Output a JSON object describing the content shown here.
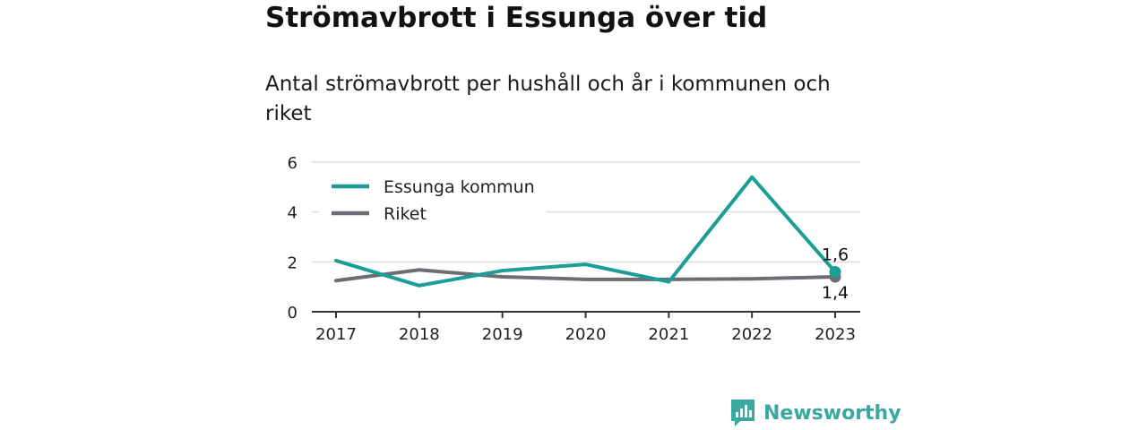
{
  "title": "Strömavbrott i Essunga över tid",
  "subtitle": "Antal strömavbrott per hushåll och år i kommunen och riket",
  "brand": {
    "name": "Newsworthy",
    "logo_icon": "bar-chart-speech-bubble-icon",
    "color": "#3aa8a0"
  },
  "chart_data": {
    "type": "line",
    "categories": [
      "2017",
      "2018",
      "2019",
      "2020",
      "2021",
      "2022",
      "2023"
    ],
    "series": [
      {
        "name": "Essunga kommun",
        "color": "#1a9e96",
        "values": [
          2.05,
          1.05,
          1.65,
          1.9,
          1.2,
          5.4,
          1.6
        ]
      },
      {
        "name": "Riket",
        "color": "#6e6d73",
        "values": [
          1.25,
          1.68,
          1.4,
          1.3,
          1.3,
          1.32,
          1.4
        ]
      }
    ],
    "end_labels": [
      "1,6",
      "1,4"
    ],
    "ylim": [
      0,
      6
    ],
    "yticks": [
      "0",
      "2",
      "4",
      "6"
    ],
    "grid": true,
    "legend": "top-left",
    "xlabel": "",
    "ylabel": ""
  }
}
